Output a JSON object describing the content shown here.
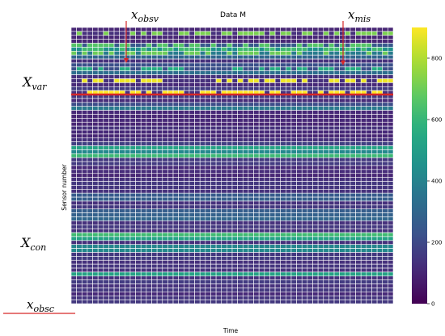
{
  "chart_data": {
    "type": "heatmap",
    "title": "Data M",
    "xlabel": "Time",
    "ylabel": "Sensor number",
    "n_cols": 60,
    "n_rows": 70,
    "colorbar": {
      "min": 0,
      "max": 900,
      "ticks": [
        0,
        200,
        400,
        600,
        800
      ],
      "colormap": "viridis"
    },
    "row_values": [
      100,
      780,
      100,
      100,
      700,
      650,
      720,
      300,
      130,
      220,
      160,
      330,
      130,
      700,
      110,
      160,
      170,
      150,
      120,
      210,
      370,
      110,
      100,
      110,
      100,
      130,
      110,
      100,
      130,
      170,
      520,
      420,
      610,
      150,
      160,
      110,
      120,
      100,
      130,
      150,
      140,
      130,
      260,
      270,
      130,
      150,
      270,
      280,
      300,
      130,
      150,
      130,
      620,
      520,
      130,
      410,
      420,
      150,
      160,
      130,
      140,
      130,
      520,
      130,
      160,
      130,
      150,
      110,
      140,
      150
    ],
    "intermittent_rows": [
      {
        "row": 1,
        "value": 720,
        "off_value": 130
      },
      {
        "row": 4,
        "value": 660,
        "off_value": 250
      },
      {
        "row": 5,
        "value": 620,
        "off_value": 450
      },
      {
        "row": 6,
        "value": 700,
        "off_value": 380
      },
      {
        "row": 10,
        "value": 220,
        "off_value": 560
      },
      {
        "row": 13,
        "value": 880,
        "off_value": 130
      },
      {
        "row": 16,
        "value": 900,
        "off_value": 130
      }
    ],
    "annotations": [
      {
        "label_base": "x",
        "label_sub": "obsv"
      },
      {
        "label_base": "x",
        "label_sub": "mis"
      },
      {
        "label_base": "X",
        "label_sub": "var"
      },
      {
        "label_base": "X",
        "label_sub": "con"
      },
      {
        "label_base": "x",
        "label_sub": "obsc"
      }
    ],
    "boundary_row": 17,
    "annotation_color": "#d62728"
  }
}
